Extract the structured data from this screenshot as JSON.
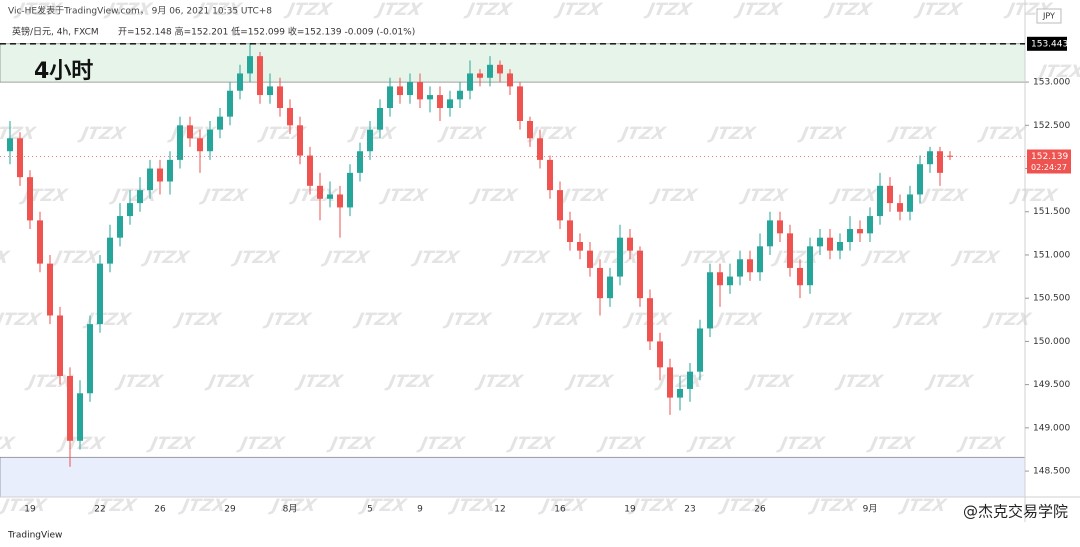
{
  "chart_data": {
    "type": "candlestick",
    "header": "Vic-HE发表于TradingView.com， 9月 06, 2021 10:35 UTC+8",
    "symbol": "英镑/日元, 4h, FXCM",
    "ohlc_label": "开=152.148  高=152.201  低=152.099  收=152.139  -0.009 (-0.01%)",
    "title": "4小时",
    "currency": "JPY",
    "watermark": "JTZX",
    "logo": "TradingView",
    "credit": "@杰克交易学院",
    "up_color": "#26a69a",
    "down_color": "#ef5350",
    "categories": [
      null,
      null,
      "19",
      null,
      null,
      null,
      null,
      null,
      null,
      "22",
      null,
      null,
      null,
      null,
      null,
      "26",
      null,
      null,
      null,
      null,
      null,
      null,
      "29",
      null,
      null,
      null,
      null,
      null,
      "8月",
      null,
      null,
      null,
      null,
      null,
      null,
      null,
      "5",
      null,
      null,
      null,
      null,
      "9",
      null,
      null,
      null,
      null,
      null,
      null,
      null,
      "12",
      null,
      null,
      null,
      null,
      null,
      "16",
      null,
      null,
      null,
      null,
      null,
      null,
      "19",
      null,
      null,
      null,
      null,
      null,
      "23",
      null,
      null,
      null,
      null,
      null,
      null,
      "26",
      null,
      null,
      null,
      null,
      null,
      null,
      null,
      null,
      null,
      null,
      "9月",
      null,
      null,
      null,
      null,
      null,
      null,
      null,
      null
    ],
    "open": [
      152.2,
      152.35,
      151.9,
      151.4,
      150.9,
      150.3,
      149.6,
      148.85,
      149.4,
      150.2,
      150.9,
      151.2,
      151.45,
      151.6,
      151.75,
      152.0,
      151.85,
      152.1,
      152.5,
      152.35,
      152.2,
      152.45,
      152.6,
      152.9,
      153.1,
      153.3,
      152.85,
      152.95,
      152.7,
      152.5,
      152.15,
      151.8,
      151.65,
      151.7,
      151.55,
      151.95,
      152.2,
      152.45,
      152.7,
      152.95,
      152.85,
      153.0,
      152.8,
      152.85,
      152.7,
      152.8,
      152.9,
      153.1,
      153.05,
      153.2,
      153.1,
      152.95,
      152.55,
      152.35,
      152.1,
      151.75,
      151.4,
      151.15,
      151.05,
      150.85,
      150.5,
      150.75,
      151.2,
      151.05,
      150.5,
      150.0,
      149.7,
      149.35,
      149.45,
      149.65,
      150.15,
      150.8,
      150.65,
      150.75,
      150.95,
      150.8,
      151.1,
      151.4,
      151.25,
      150.85,
      150.65,
      151.1,
      151.2,
      151.05,
      151.15,
      151.3,
      151.25,
      151.45,
      151.8,
      151.6,
      151.5,
      151.7,
      152.05,
      152.2,
      152.148
    ],
    "high": [
      152.55,
      152.42,
      151.98,
      151.5,
      151.0,
      150.4,
      149.7,
      149.55,
      150.3,
      151.0,
      151.35,
      151.6,
      151.75,
      151.9,
      152.1,
      152.1,
      152.2,
      152.6,
      152.6,
      152.45,
      152.55,
      152.7,
      153.0,
      153.2,
      153.45,
      153.35,
      153.1,
      153.05,
      152.8,
      152.6,
      152.25,
      151.95,
      151.85,
      151.8,
      152.05,
      152.3,
      152.55,
      152.8,
      153.05,
      153.05,
      153.1,
      153.1,
      152.95,
      152.95,
      152.9,
      153.0,
      153.25,
      153.15,
      153.3,
      153.25,
      153.15,
      153.0,
      152.6,
      152.45,
      152.15,
      151.85,
      151.5,
      151.25,
      151.15,
      150.95,
      150.85,
      151.35,
      151.3,
      151.1,
      150.6,
      150.1,
      149.8,
      149.6,
      149.75,
      150.25,
      150.9,
      150.9,
      150.9,
      151.05,
      151.05,
      151.25,
      151.5,
      151.5,
      151.35,
      150.95,
      151.2,
      151.3,
      151.3,
      151.25,
      151.45,
      151.4,
      151.55,
      151.95,
      151.9,
      151.7,
      151.8,
      152.15,
      152.25,
      152.25,
      152.201
    ],
    "low": [
      152.05,
      151.8,
      151.3,
      150.8,
      150.2,
      149.5,
      148.55,
      148.75,
      149.3,
      150.1,
      150.8,
      151.1,
      151.35,
      151.5,
      151.65,
      151.7,
      151.7,
      152.0,
      152.25,
      151.95,
      152.1,
      152.35,
      152.5,
      152.8,
      153.0,
      152.75,
      152.75,
      152.6,
      152.4,
      152.05,
      151.7,
      151.4,
      151.55,
      151.2,
      151.45,
      151.85,
      152.1,
      152.35,
      152.6,
      152.75,
      152.75,
      152.7,
      152.65,
      152.55,
      152.6,
      152.7,
      152.8,
      152.95,
      152.95,
      153.0,
      152.85,
      152.45,
      152.25,
      152.0,
      151.65,
      151.3,
      151.05,
      150.95,
      150.75,
      150.3,
      150.4,
      150.65,
      150.95,
      150.4,
      149.9,
      149.55,
      149.15,
      149.2,
      149.3,
      149.55,
      150.05,
      150.4,
      150.55,
      150.65,
      150.7,
      150.7,
      151.0,
      151.15,
      150.75,
      150.5,
      150.55,
      151.0,
      150.95,
      150.95,
      151.05,
      151.15,
      151.15,
      151.35,
      151.5,
      151.4,
      151.4,
      151.6,
      151.95,
      151.8,
      152.099
    ],
    "close": [
      152.35,
      151.9,
      151.4,
      150.9,
      150.3,
      149.6,
      148.85,
      149.4,
      150.2,
      150.9,
      151.2,
      151.45,
      151.6,
      151.75,
      152.0,
      151.85,
      152.1,
      152.5,
      152.35,
      152.2,
      152.45,
      152.6,
      152.9,
      153.1,
      153.3,
      152.85,
      152.95,
      152.7,
      152.5,
      152.15,
      151.8,
      151.65,
      151.7,
      151.55,
      151.95,
      152.2,
      152.45,
      152.7,
      152.95,
      152.85,
      153.0,
      152.8,
      152.85,
      152.7,
      152.8,
      152.9,
      153.1,
      153.05,
      153.2,
      153.1,
      152.95,
      152.55,
      152.35,
      152.1,
      151.75,
      151.4,
      151.15,
      151.05,
      150.85,
      150.5,
      150.75,
      151.2,
      151.05,
      150.5,
      150.0,
      149.7,
      149.35,
      149.45,
      149.65,
      150.15,
      150.8,
      150.65,
      150.75,
      150.95,
      150.8,
      151.1,
      151.4,
      151.25,
      150.85,
      150.65,
      151.1,
      151.2,
      151.05,
      151.15,
      151.3,
      151.25,
      151.45,
      151.8,
      151.6,
      151.5,
      151.7,
      152.05,
      152.2,
      151.95,
      152.139
    ],
    "ylim": [
      148.2,
      153.51
    ],
    "yticks": [
      {
        "value": 148.5,
        "label": "148.500"
      },
      {
        "value": 149,
        "label": "149.000"
      },
      {
        "value": 149.5,
        "label": "149.500"
      },
      {
        "value": 150,
        "label": "150.000"
      },
      {
        "value": 150.5,
        "label": "150.500"
      },
      {
        "value": 151,
        "label": "151.000"
      },
      {
        "value": 151.5,
        "label": "151.500"
      },
      {
        "value": 152,
        "label": "152.000"
      },
      {
        "value": 152.5,
        "label": "152.500"
      },
      {
        "value": 153,
        "label": "153.000"
      }
    ],
    "zones": [
      {
        "from": 153.0,
        "to": 153.443,
        "color": "#e6f4ea"
      },
      {
        "from": 148.2,
        "to": 148.66,
        "color": "#e8eefc"
      }
    ],
    "level": {
      "value": 153.443,
      "label": "153.443",
      "color": "#000000"
    },
    "last_price": {
      "value": 152.139,
      "label": "152.139",
      "countdown": "02:24:27",
      "color": "#ef5350"
    }
  }
}
